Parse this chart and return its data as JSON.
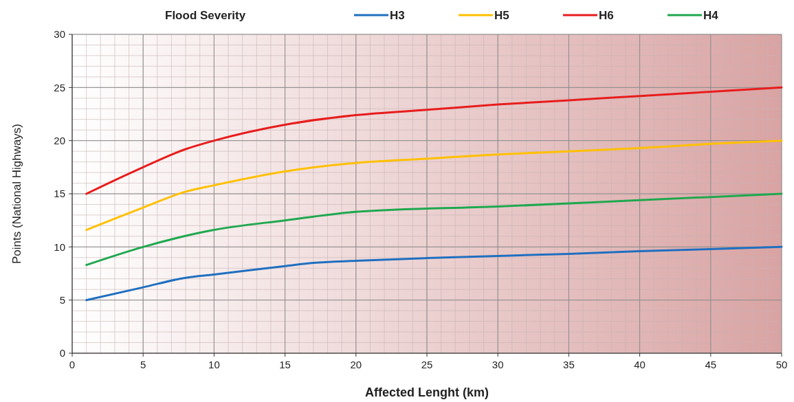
{
  "chart_data": {
    "type": "line",
    "xlabel": "Affected Lenght (km)",
    "ylabel": "Points (National Highways)",
    "legend_title": "Flood Severity",
    "legend": "top",
    "grid": true,
    "marker": "none",
    "line_style": "solid",
    "xlim": [
      0,
      50
    ],
    "xticks": [
      0,
      5,
      10,
      15,
      20,
      25,
      30,
      35,
      40,
      45,
      50
    ],
    "ylim": [
      0,
      30
    ],
    "yticks": [
      0,
      5,
      10,
      15,
      20,
      25,
      30
    ],
    "series": [
      {
        "name": "H3",
        "color": "#1f6fc0",
        "x": [
          1,
          5,
          8,
          10,
          15,
          17,
          20,
          25,
          30,
          35,
          40,
          45,
          50
        ],
        "values": [
          5,
          6.2,
          7.1,
          7.4,
          8.2,
          8.5,
          8.7,
          8.95,
          9.15,
          9.35,
          9.6,
          9.8,
          10
        ]
      },
      {
        "name": "H5",
        "color": "#ffc000",
        "x": [
          1,
          5,
          8,
          10,
          15,
          20,
          25,
          30,
          35,
          40,
          45,
          50
        ],
        "values": [
          11.6,
          13.7,
          15.2,
          15.8,
          17.1,
          17.9,
          18.3,
          18.7,
          19,
          19.3,
          19.7,
          20
        ]
      },
      {
        "name": "H6",
        "color": "#e81c1c",
        "x": [
          1,
          5,
          8,
          10,
          15,
          20,
          25,
          30,
          35,
          40,
          45,
          50
        ],
        "values": [
          15,
          17.5,
          19.2,
          20,
          21.5,
          22.4,
          22.9,
          23.4,
          23.8,
          24.2,
          24.6,
          25
        ]
      },
      {
        "name": "H4",
        "color": "#1fa84f",
        "x": [
          1,
          5,
          10,
          15,
          20,
          30,
          40,
          50
        ],
        "values": [
          8.3,
          10,
          11.6,
          12.5,
          13.3,
          13.8,
          14.4,
          15
        ]
      }
    ]
  }
}
